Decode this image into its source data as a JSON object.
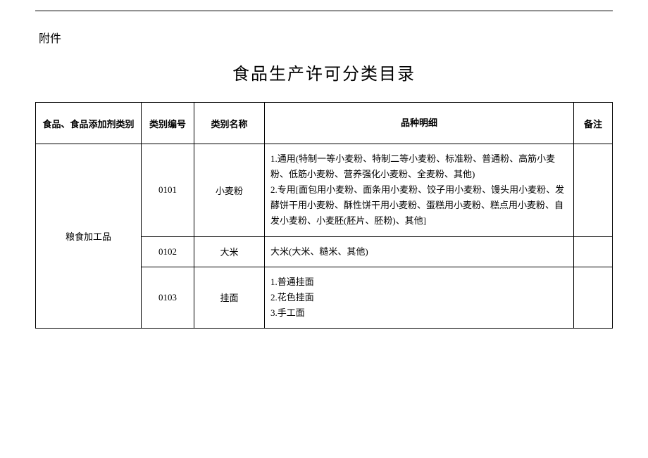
{
  "attachment_label": "附件",
  "title": "食品生产许可分类目录",
  "headers": {
    "category": "食品、食品添加剂类别",
    "code": "类别编号",
    "name": "类别名称",
    "detail": "品种明细",
    "note": "备注"
  },
  "category_group": "粮食加工品",
  "rows": [
    {
      "code": "0101",
      "name": "小麦粉",
      "detail": "1.通用(特制一等小麦粉、特制二等小麦粉、标准粉、普通粉、高筋小麦粉、低筋小麦粉、营养强化小麦粉、全麦粉、其他)\n2.专用[面包用小麦粉、面条用小麦粉、饺子用小麦粉、馒头用小麦粉、发酵饼干用小麦粉、酥性饼干用小麦粉、蛋糕用小麦粉、糕点用小麦粉、自发小麦粉、小麦胚(胚片、胚粉)、其他]",
      "note": ""
    },
    {
      "code": "0102",
      "name": "大米",
      "detail": "大米(大米、糙米、其他)",
      "note": ""
    },
    {
      "code": "0103",
      "name": "挂面",
      "detail": "1.普通挂面\n2.花色挂面\n3.手工面",
      "note": ""
    }
  ],
  "styles": {
    "border_color": "#000000",
    "text_color": "#000000",
    "background_color": "#ffffff",
    "title_fontsize": 24,
    "body_fontsize": 13,
    "header_fontsize": 13
  }
}
